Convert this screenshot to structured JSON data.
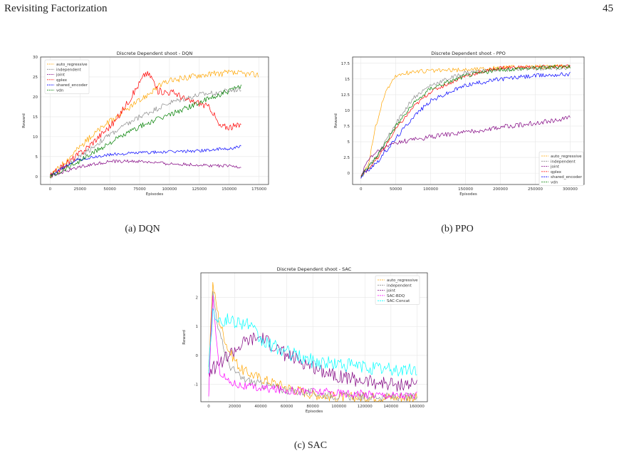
{
  "page": {
    "header_title": "Revisiting Factorization",
    "page_number": "45"
  },
  "captions": [
    "(a) DQN",
    "(b) PPO",
    "(c) SAC"
  ],
  "chart_data": [
    {
      "type": "line",
      "title": "Discrete Dependent shoot - DQN",
      "xlabel": "Episodes",
      "ylabel": "Reward",
      "xlim": [
        -8000,
        183000
      ],
      "ylim": [
        -2,
        30
      ],
      "xticks": [
        0,
        25000,
        50000,
        75000,
        100000,
        125000,
        150000,
        175000
      ],
      "yticks": [
        0,
        5,
        10,
        15,
        20,
        25,
        30
      ],
      "grid": true,
      "legend": "top-left",
      "series": [
        {
          "name": "auto_regressive",
          "color": "#FFA500",
          "noise": 0.8,
          "points": [
            [
              0,
              0
            ],
            [
              10000,
              3
            ],
            [
              25000,
              7.5
            ],
            [
              40000,
              11.5
            ],
            [
              60000,
              16
            ],
            [
              75000,
              19
            ],
            [
              90000,
              22.5
            ],
            [
              100000,
              24
            ],
            [
              125000,
              25.5
            ],
            [
              150000,
              26
            ],
            [
              175000,
              25.5
            ]
          ]
        },
        {
          "name": "independent",
          "color": "#8C8C8C",
          "noise": 0.7,
          "points": [
            [
              0,
              0
            ],
            [
              25000,
              5
            ],
            [
              50000,
              10.5
            ],
            [
              75000,
              15
            ],
            [
              100000,
              18.5
            ],
            [
              125000,
              20.5
            ],
            [
              150000,
              21.5
            ],
            [
              160000,
              22
            ]
          ]
        },
        {
          "name": "joint",
          "color": "#800080",
          "noise": 0.4,
          "points": [
            [
              0,
              0
            ],
            [
              25000,
              2.5
            ],
            [
              50000,
              3.8
            ],
            [
              75000,
              3.8
            ],
            [
              100000,
              3.2
            ],
            [
              125000,
              2.9
            ],
            [
              150000,
              2.6
            ],
            [
              160000,
              2.4
            ]
          ]
        },
        {
          "name": "qplex",
          "color": "#FF0000",
          "noise": 0.9,
          "points": [
            [
              0,
              0
            ],
            [
              30000,
              7
            ],
            [
              55000,
              14
            ],
            [
              70000,
              21
            ],
            [
              80000,
              26
            ],
            [
              85000,
              25
            ],
            [
              90000,
              21.5
            ],
            [
              105000,
              21
            ],
            [
              115000,
              19
            ],
            [
              125000,
              18.5
            ],
            [
              135000,
              17
            ],
            [
              142000,
              12.5
            ],
            [
              155000,
              12.5
            ],
            [
              160000,
              13
            ]
          ]
        },
        {
          "name": "shared_encoder",
          "color": "#0000FF",
          "noise": 0.4,
          "points": [
            [
              0,
              0
            ],
            [
              20000,
              4
            ],
            [
              50000,
              5.5
            ],
            [
              75000,
              6
            ],
            [
              100000,
              6.2
            ],
            [
              125000,
              6.5
            ],
            [
              150000,
              7
            ],
            [
              160000,
              7.5
            ]
          ]
        },
        {
          "name": "vdn",
          "color": "#008000",
          "noise": 0.7,
          "points": [
            [
              0,
              0
            ],
            [
              25000,
              4
            ],
            [
              50000,
              8.5
            ],
            [
              75000,
              12.5
            ],
            [
              100000,
              15.5
            ],
            [
              125000,
              18.5
            ],
            [
              150000,
              21.5
            ],
            [
              160000,
              22.5
            ]
          ]
        }
      ]
    },
    {
      "type": "line",
      "title": "Discrete Dependent shoot - PPO",
      "xlabel": "Episodes",
      "ylabel": "Reward",
      "xlim": [
        -12000,
        320000
      ],
      "ylim": [
        -1.8,
        18.5
      ],
      "xticks": [
        0,
        50000,
        100000,
        150000,
        200000,
        250000,
        300000
      ],
      "yticks": [
        0.0,
        2.5,
        5.0,
        7.5,
        10.0,
        12.5,
        15.0,
        17.5
      ],
      "grid": true,
      "legend": "bottom-right",
      "series": [
        {
          "name": "auto_regressive",
          "color": "#FFA500",
          "noise": 0.35,
          "points": [
            [
              0,
              -0.5
            ],
            [
              10000,
              1
            ],
            [
              20000,
              7
            ],
            [
              35000,
              13
            ],
            [
              50000,
              15.5
            ],
            [
              75000,
              16.2
            ],
            [
              100000,
              16.3
            ],
            [
              150000,
              16.5
            ],
            [
              200000,
              16.8
            ],
            [
              300000,
              17
            ]
          ]
        },
        {
          "name": "independent",
          "color": "#8C8C8C",
          "noise": 0.35,
          "points": [
            [
              0,
              -0.5
            ],
            [
              25000,
              3
            ],
            [
              50000,
              8
            ],
            [
              75000,
              12
            ],
            [
              100000,
              14
            ],
            [
              150000,
              16
            ],
            [
              200000,
              16.5
            ],
            [
              300000,
              16.8
            ]
          ]
        },
        {
          "name": "joint",
          "color": "#800080",
          "noise": 0.4,
          "points": [
            [
              0,
              -0.5
            ],
            [
              10000,
              2
            ],
            [
              25000,
              3.5
            ],
            [
              50000,
              4.8
            ],
            [
              100000,
              5.8
            ],
            [
              150000,
              6.5
            ],
            [
              200000,
              7.3
            ],
            [
              250000,
              8
            ],
            [
              300000,
              8.8
            ]
          ]
        },
        {
          "name": "qplex",
          "color": "#FF0000",
          "noise": 0.3,
          "points": [
            [
              0,
              -0.5
            ],
            [
              25000,
              2.5
            ],
            [
              50000,
              7
            ],
            [
              75000,
              10.5
            ],
            [
              100000,
              13
            ],
            [
              150000,
              15.5
            ],
            [
              200000,
              16.8
            ],
            [
              300000,
              17
            ]
          ]
        },
        {
          "name": "shared_encoder",
          "color": "#0000FF",
          "noise": 0.35,
          "points": [
            [
              0,
              -0.5
            ],
            [
              25000,
              2
            ],
            [
              50000,
              5.5
            ],
            [
              75000,
              9
            ],
            [
              100000,
              11.5
            ],
            [
              150000,
              14
            ],
            [
              200000,
              15
            ],
            [
              250000,
              15.5
            ],
            [
              300000,
              15.8
            ]
          ]
        },
        {
          "name": "vdn",
          "color": "#008000",
          "noise": 0.35,
          "points": [
            [
              0,
              -0.5
            ],
            [
              25000,
              3
            ],
            [
              50000,
              7.5
            ],
            [
              75000,
              11
            ],
            [
              100000,
              13.5
            ],
            [
              150000,
              15.5
            ],
            [
              200000,
              16.5
            ],
            [
              300000,
              17
            ]
          ]
        }
      ]
    },
    {
      "type": "line",
      "title": "Discrete Dependent shoot - SAC",
      "xlabel": "Episodes",
      "ylabel": "Reward",
      "xlim": [
        -6000,
        168000
      ],
      "ylim": [
        -1.6,
        2.85
      ],
      "xticks": [
        0,
        20000,
        40000,
        60000,
        80000,
        100000,
        120000,
        140000,
        160000
      ],
      "yticks": [
        -1,
        0,
        1,
        2
      ],
      "grid": true,
      "legend": "top-right",
      "series": [
        {
          "name": "auto_regressive",
          "color": "#FFA500",
          "noise": 0.18,
          "points": [
            [
              0,
              -0.5
            ],
            [
              3000,
              2.5
            ],
            [
              8000,
              1.2
            ],
            [
              15000,
              0.2
            ],
            [
              25000,
              -0.5
            ],
            [
              40000,
              -0.8
            ],
            [
              60000,
              -1.1
            ],
            [
              80000,
              -1.35
            ],
            [
              100000,
              -1.45
            ],
            [
              160000,
              -1.45
            ]
          ]
        },
        {
          "name": "independent",
          "color": "#8C8C8C",
          "noise": 0.15,
          "points": [
            [
              0,
              -0.5
            ],
            [
              3000,
              2.2
            ],
            [
              8000,
              0.8
            ],
            [
              15000,
              -0.3
            ],
            [
              25000,
              -0.8
            ],
            [
              40000,
              -1
            ],
            [
              60000,
              -1.2
            ],
            [
              80000,
              -1.3
            ],
            [
              100000,
              -1.4
            ],
            [
              160000,
              -1.45
            ]
          ]
        },
        {
          "name": "joint",
          "color": "#800080",
          "noise": 0.25,
          "points": [
            [
              0,
              -0.5
            ],
            [
              5000,
              -0.4
            ],
            [
              15000,
              0
            ],
            [
              30000,
              0.5
            ],
            [
              40000,
              0.6
            ],
            [
              50000,
              0.3
            ],
            [
              60000,
              0
            ],
            [
              80000,
              -0.4
            ],
            [
              100000,
              -0.7
            ],
            [
              120000,
              -0.9
            ],
            [
              140000,
              -1
            ],
            [
              160000,
              -1
            ]
          ]
        },
        {
          "name": "SAC-BDQ",
          "color": "#FF00FF",
          "noise": 0.15,
          "points": [
            [
              0,
              -1.5
            ],
            [
              3000,
              2.1
            ],
            [
              8000,
              -0.5
            ],
            [
              15000,
              -0.9
            ],
            [
              30000,
              -1.1
            ],
            [
              60000,
              -1.2
            ],
            [
              100000,
              -1.3
            ],
            [
              160000,
              -1.4
            ]
          ]
        },
        {
          "name": "SAC-Concat",
          "color": "#00FFFF",
          "noise": 0.25,
          "points": [
            [
              0,
              -0.5
            ],
            [
              3000,
              1.5
            ],
            [
              10000,
              1.2
            ],
            [
              20000,
              1.2
            ],
            [
              30000,
              1.1
            ],
            [
              40000,
              0.5
            ],
            [
              60000,
              0.1
            ],
            [
              80000,
              -0.2
            ],
            [
              100000,
              -0.3
            ],
            [
              120000,
              -0.4
            ],
            [
              140000,
              -0.5
            ],
            [
              160000,
              -0.5
            ]
          ]
        }
      ]
    }
  ]
}
